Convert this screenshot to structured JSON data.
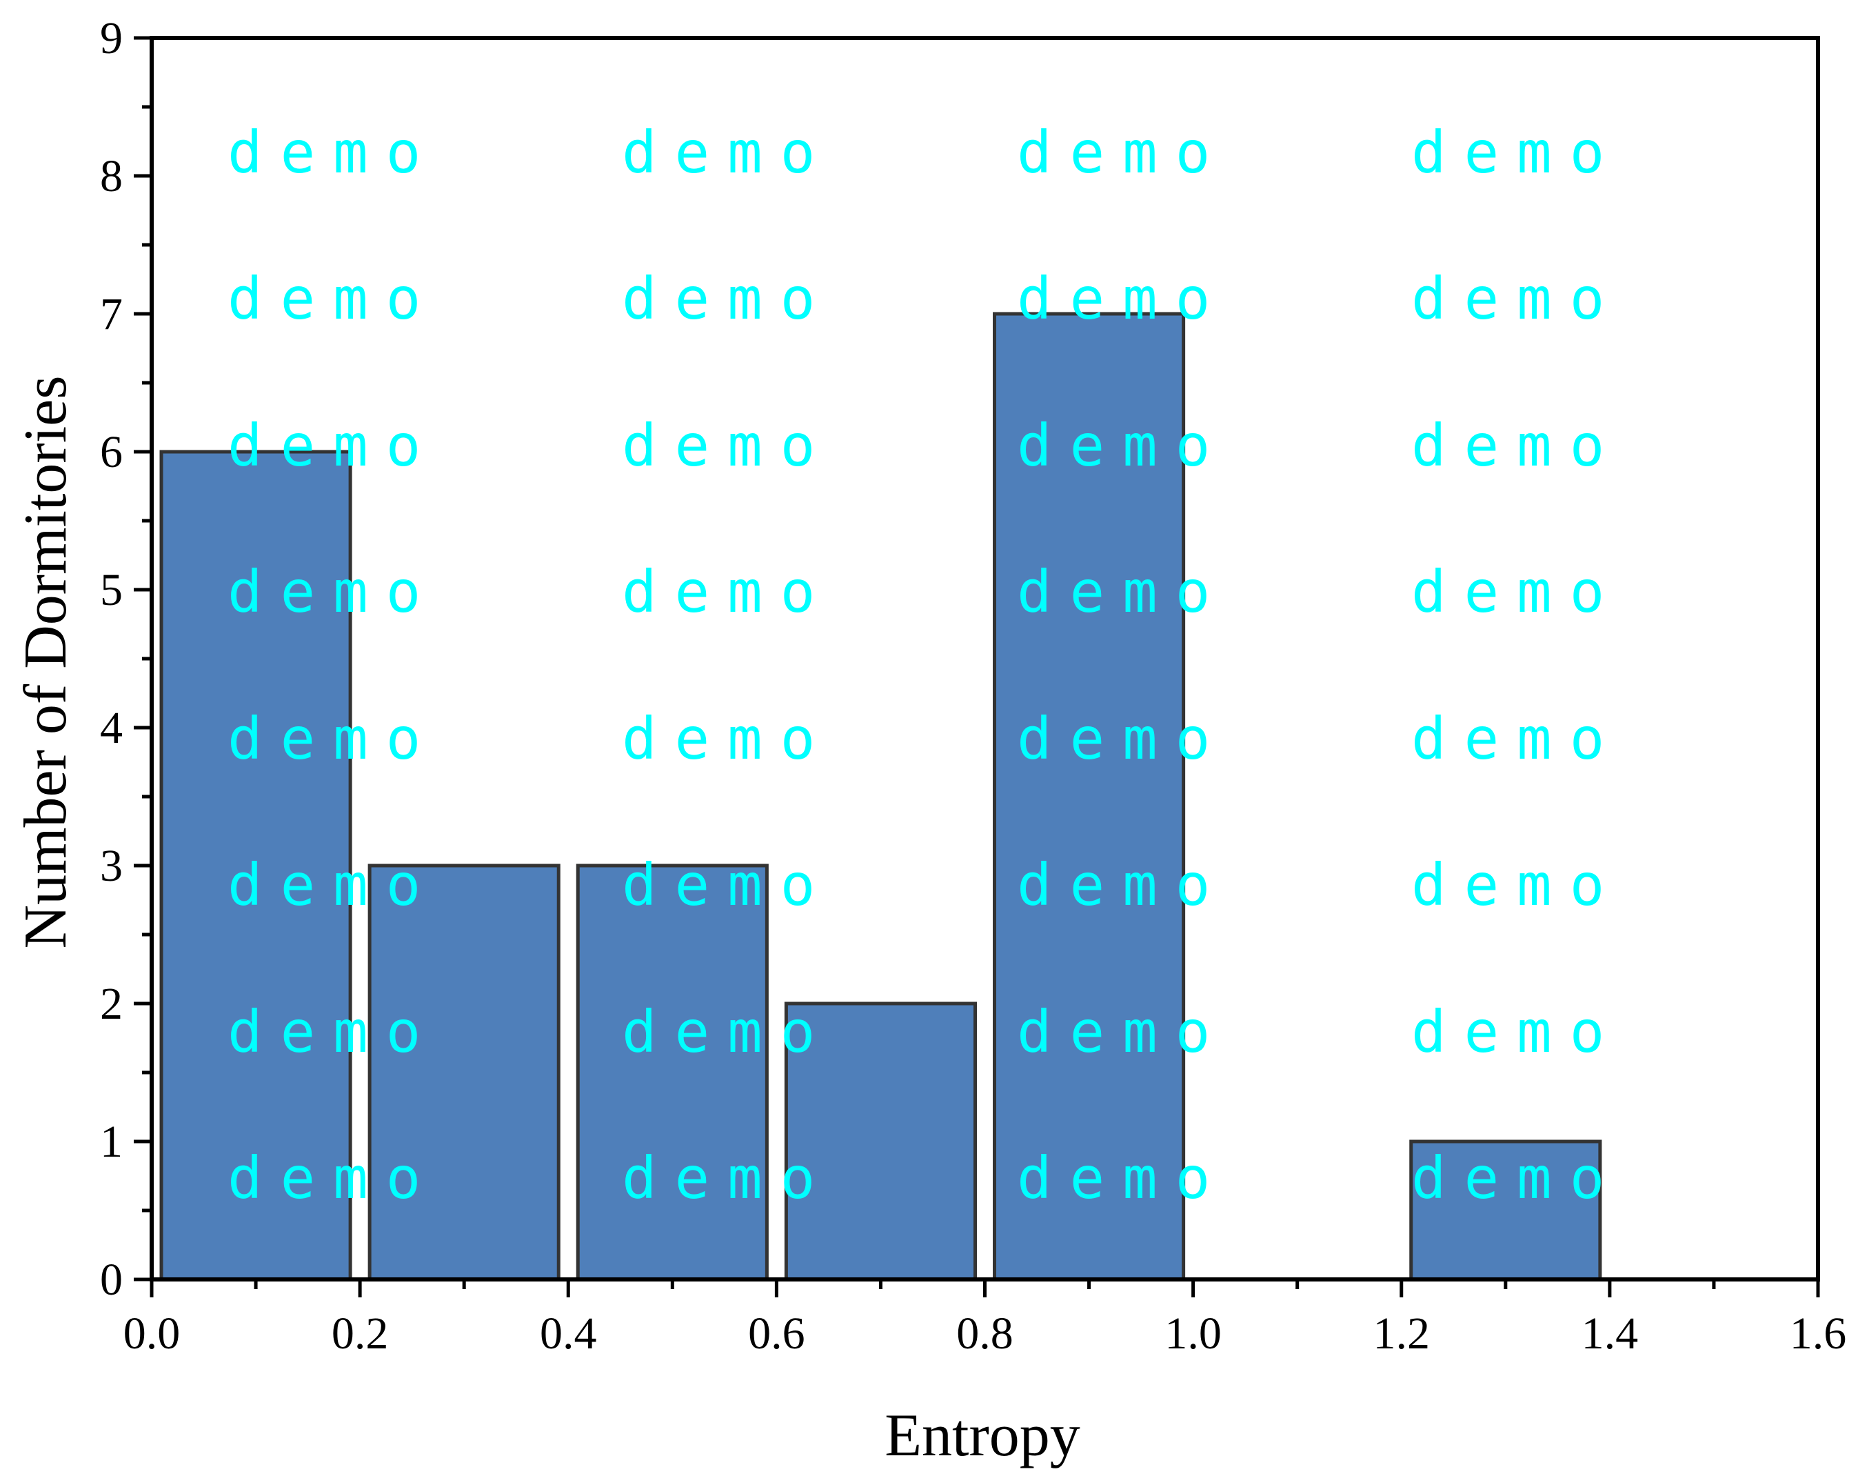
{
  "chart_data": {
    "type": "bar",
    "xlabel": "Entropy",
    "ylabel": "Number of Dormitories",
    "xlim": [
      0,
      1.6
    ],
    "ylim": [
      0,
      9
    ],
    "x_ticks": [
      "0.0",
      "0.2",
      "0.4",
      "0.6",
      "0.8",
      "1.0",
      "1.2",
      "1.4",
      "1.6"
    ],
    "y_ticks": [
      "0",
      "1",
      "2",
      "3",
      "4",
      "5",
      "6",
      "7",
      "8",
      "9"
    ],
    "bins": [
      {
        "start": 0.0,
        "end": 0.2,
        "value": 6
      },
      {
        "start": 0.2,
        "end": 0.4,
        "value": 3
      },
      {
        "start": 0.4,
        "end": 0.6,
        "value": 3
      },
      {
        "start": 0.6,
        "end": 0.8,
        "value": 2
      },
      {
        "start": 0.8,
        "end": 1.0,
        "value": 7
      },
      {
        "start": 1.0,
        "end": 1.2,
        "value": 0
      },
      {
        "start": 1.2,
        "end": 1.4,
        "value": 1
      },
      {
        "start": 1.4,
        "end": 1.6,
        "value": 0
      }
    ],
    "grid": false,
    "legend": "none",
    "bar_color": "#4f7fba",
    "bar_edge_color": "#333333"
  },
  "watermark": {
    "text": "demo",
    "color": "#00ffff"
  }
}
